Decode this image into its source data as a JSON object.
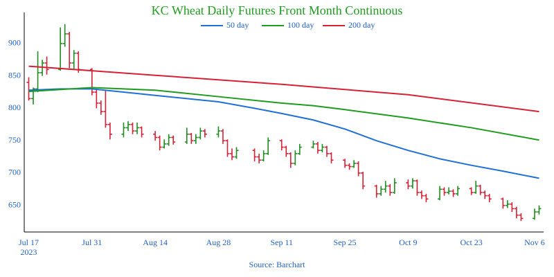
{
  "chart_data": {
    "type": "ohlc",
    "title": "KC Wheat Daily Futures Front Month Continuous",
    "source": "Source: Barchart",
    "x": [
      "2023-07-17",
      "2023-07-18",
      "2023-07-19",
      "2023-07-20",
      "2023-07-21",
      "2023-07-24",
      "2023-07-25",
      "2023-07-26",
      "2023-07-27",
      "2023-07-28",
      "2023-07-31",
      "2023-08-01",
      "2023-08-02",
      "2023-08-03",
      "2023-08-04",
      "2023-08-07",
      "2023-08-08",
      "2023-08-09",
      "2023-08-10",
      "2023-08-11",
      "2023-08-14",
      "2023-08-15",
      "2023-08-16",
      "2023-08-17",
      "2023-08-18",
      "2023-08-21",
      "2023-08-22",
      "2023-08-23",
      "2023-08-24",
      "2023-08-25",
      "2023-08-28",
      "2023-08-29",
      "2023-08-30",
      "2023-08-31",
      "2023-09-01",
      "2023-09-05",
      "2023-09-06",
      "2023-09-07",
      "2023-09-08",
      "2023-09-11",
      "2023-09-12",
      "2023-09-13",
      "2023-09-14",
      "2023-09-15",
      "2023-09-18",
      "2023-09-19",
      "2023-09-20",
      "2023-09-21",
      "2023-09-22",
      "2023-09-25",
      "2023-09-26",
      "2023-09-27",
      "2023-09-28",
      "2023-09-29",
      "2023-10-02",
      "2023-10-03",
      "2023-10-04",
      "2023-10-05",
      "2023-10-06",
      "2023-10-09",
      "2023-10-10",
      "2023-10-11",
      "2023-10-12",
      "2023-10-13",
      "2023-10-16",
      "2023-10-17",
      "2023-10-18",
      "2023-10-19",
      "2023-10-20",
      "2023-10-23",
      "2023-10-24",
      "2023-10-25",
      "2023-10-26",
      "2023-10-27",
      "2023-10-30",
      "2023-10-31",
      "2023-11-01",
      "2023-11-02",
      "2023-11-03",
      "2023-11-06",
      "2023-11-07"
    ],
    "open": [
      840,
      815,
      830,
      855,
      870,
      860,
      900,
      915,
      870,
      885,
      860,
      825,
      808,
      795,
      775,
      760,
      770,
      775,
      765,
      770,
      760,
      755,
      740,
      745,
      755,
      748,
      760,
      750,
      755,
      765,
      760,
      765,
      750,
      730,
      725,
      735,
      725,
      720,
      730,
      750,
      740,
      730,
      715,
      730,
      740,
      745,
      735,
      740,
      730,
      720,
      712,
      710,
      715,
      700,
      680,
      668,
      675,
      680,
      670,
      685,
      680,
      688,
      670,
      665,
      660,
      675,
      670,
      672,
      668,
      676,
      670,
      680,
      670,
      665,
      660,
      650,
      652,
      645,
      635,
      630,
      640
    ],
    "high": [
      848,
      832,
      888,
      875,
      880,
      925,
      930,
      918,
      890,
      888,
      862,
      830,
      812,
      828,
      778,
      778,
      780,
      778,
      778,
      772,
      765,
      758,
      752,
      760,
      758,
      770,
      762,
      760,
      770,
      768,
      772,
      768,
      752,
      738,
      740,
      738,
      730,
      735,
      755,
      752,
      742,
      732,
      735,
      745,
      750,
      748,
      745,
      742,
      732,
      722,
      715,
      720,
      718,
      702,
      682,
      680,
      688,
      683,
      692,
      690,
      692,
      690,
      673,
      668,
      680,
      678,
      678,
      675,
      680,
      678,
      688,
      682,
      673,
      668,
      662,
      658,
      655,
      648,
      638,
      645,
      650
    ],
    "low": [
      812,
      806,
      825,
      850,
      852,
      858,
      895,
      862,
      860,
      855,
      820,
      800,
      790,
      770,
      752,
      755,
      765,
      760,
      760,
      755,
      750,
      735,
      738,
      742,
      744,
      745,
      745,
      745,
      752,
      755,
      755,
      745,
      725,
      720,
      722,
      718,
      715,
      718,
      728,
      735,
      725,
      708,
      712,
      728,
      738,
      730,
      732,
      725,
      715,
      708,
      705,
      708,
      695,
      675,
      662,
      665,
      670,
      665,
      668,
      675,
      676,
      665,
      660,
      655,
      658,
      665,
      667,
      663,
      665,
      666,
      668,
      666,
      660,
      655,
      645,
      646,
      640,
      630,
      626,
      628,
      636
    ],
    "close": [
      815,
      830,
      855,
      870,
      860,
      900,
      915,
      870,
      885,
      860,
      825,
      808,
      795,
      775,
      760,
      770,
      775,
      765,
      770,
      760,
      755,
      740,
      745,
      755,
      748,
      760,
      750,
      755,
      765,
      760,
      765,
      750,
      730,
      725,
      735,
      725,
      720,
      730,
      750,
      740,
      730,
      715,
      730,
      740,
      745,
      735,
      740,
      730,
      720,
      712,
      710,
      715,
      700,
      680,
      668,
      675,
      680,
      670,
      685,
      680,
      688,
      670,
      665,
      660,
      675,
      670,
      672,
      668,
      676,
      670,
      680,
      670,
      665,
      660,
      650,
      652,
      645,
      635,
      630,
      640,
      645
    ],
    "up_color": "#1e8c1e",
    "down_color": "#d62035",
    "series": [
      {
        "name": "50 day",
        "color": "#1f6fd6",
        "x": [
          "2023-07-17",
          "2023-07-24",
          "2023-07-31",
          "2023-08-07",
          "2023-08-14",
          "2023-08-21",
          "2023-08-28",
          "2023-09-05",
          "2023-09-11",
          "2023-09-18",
          "2023-09-25",
          "2023-10-02",
          "2023-10-09",
          "2023-10-16",
          "2023-10-23",
          "2023-10-30",
          "2023-11-07"
        ],
        "values": [
          828,
          830,
          830,
          825,
          820,
          815,
          810,
          800,
          792,
          782,
          768,
          750,
          735,
          722,
          712,
          703,
          692
        ]
      },
      {
        "name": "100 day",
        "color": "#1e9c1e",
        "x": [
          "2023-07-17",
          "2023-07-31",
          "2023-08-14",
          "2023-08-28",
          "2023-09-11",
          "2023-09-18",
          "2023-09-25",
          "2023-10-09",
          "2023-10-23",
          "2023-11-07"
        ],
        "values": [
          826,
          832,
          828,
          818,
          808,
          804,
          798,
          785,
          770,
          751
        ]
      },
      {
        "name": "200 day",
        "color": "#d62035",
        "x": [
          "2023-07-17",
          "2023-08-14",
          "2023-09-11",
          "2023-10-09",
          "2023-11-07"
        ],
        "values": [
          865,
          851,
          837,
          821,
          795
        ]
      }
    ],
    "xlim": [
      "2023-07-16",
      "2023-11-08"
    ],
    "xticks": [
      {
        "value": "2023-07-17",
        "label": "Jul 17\n2023"
      },
      {
        "value": "2023-07-31",
        "label": "Jul 31"
      },
      {
        "value": "2023-08-14",
        "label": "Aug 14"
      },
      {
        "value": "2023-08-28",
        "label": "Aug 28"
      },
      {
        "value": "2023-09-11",
        "label": "Sep 11"
      },
      {
        "value": "2023-09-25",
        "label": "Sep 25"
      },
      {
        "value": "2023-10-09",
        "label": "Oct 9"
      },
      {
        "value": "2023-10-23",
        "label": "Oct 23"
      },
      {
        "value": "2023-11-06",
        "label": "Nov 6"
      }
    ],
    "ylim": [
      609,
      948
    ],
    "yticks": [
      650,
      700,
      750,
      800,
      850,
      900
    ]
  }
}
